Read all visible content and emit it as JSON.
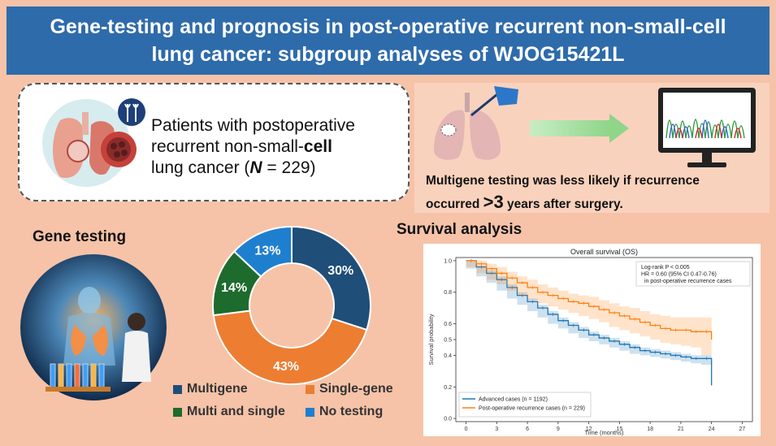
{
  "header": {
    "line1": "Gene-testing and prognosis in post-operative recurrent non-small-cell",
    "line2": "lung cancer: subgroup analyses of WJOG15421L"
  },
  "patients": {
    "line1": "Patients with postoperative",
    "line2_a": "recurrent non-small-",
    "line2_b": "cell",
    "line3_a": "lung cancer (",
    "line3_n": "N",
    "line3_b": " = 229)"
  },
  "finding": {
    "part1": "Multigene testing was less likely if recurrence",
    "part2": "occurred ",
    "big": ">3",
    "part3": " years after surgery."
  },
  "gene_testing": {
    "title": "Gene testing",
    "legend": [
      {
        "label": "Multigene",
        "color": "#1f4e79"
      },
      {
        "label": "Single-gene",
        "color": "#ed7d31"
      },
      {
        "label": "Multi and single",
        "color": "#1e6b2e"
      },
      {
        "label": "No testing",
        "color": "#1f7fcf"
      }
    ]
  },
  "survival": {
    "title": "Survival analysis"
  },
  "chart_data": [
    {
      "type": "pie",
      "variant": "donut",
      "categories": [
        "Multigene",
        "Single-gene",
        "Multi and single",
        "No testing"
      ],
      "values": [
        30,
        43,
        14,
        13
      ],
      "labels": [
        "30%",
        "43%",
        "14%",
        "13%"
      ],
      "colors": [
        "#1f4e79",
        "#ed7d31",
        "#1e6b2e",
        "#1f7fcf"
      ],
      "legend": "bottom"
    },
    {
      "type": "line",
      "title": "Overall survival (OS)",
      "xlabel": "Time (months)",
      "ylabel": "Survival probability",
      "xlim": [
        -1,
        28
      ],
      "ylim": [
        -0.02,
        1.02
      ],
      "xticks": [
        0,
        3,
        6,
        9,
        12,
        15,
        18,
        21,
        24,
        27
      ],
      "yticks": [
        0.0,
        0.2,
        0.4,
        0.5,
        0.6,
        0.8,
        1.0
      ],
      "ytick_labels": [
        "0.0",
        "0.2",
        "0.4",
        "0.5",
        "0.6",
        "0.8",
        "1.0"
      ],
      "annotation": [
        "Log-rank P < 0.005",
        "HR = 0.60 (95% CI 0.47-0.76)",
        "in post-operative recurrence cases"
      ],
      "legend_placement": "bottom-left",
      "series": [
        {
          "name": "Advanced cases (n = 1192)",
          "color": "#1f77b4",
          "x": [
            0,
            1,
            2,
            3,
            4,
            5,
            6,
            7,
            8,
            9,
            10,
            11,
            12,
            13,
            14,
            15,
            16,
            17,
            18,
            19,
            20,
            21,
            22,
            23,
            24
          ],
          "y": [
            1.0,
            0.96,
            0.92,
            0.88,
            0.83,
            0.78,
            0.74,
            0.7,
            0.66,
            0.62,
            0.59,
            0.56,
            0.53,
            0.51,
            0.49,
            0.47,
            0.45,
            0.43,
            0.42,
            0.41,
            0.4,
            0.39,
            0.38,
            0.38,
            0.38
          ],
          "ci_lower": [
            1.0,
            0.95,
            0.9,
            0.86,
            0.81,
            0.76,
            0.72,
            0.68,
            0.64,
            0.6,
            0.57,
            0.54,
            0.51,
            0.49,
            0.47,
            0.45,
            0.43,
            0.41,
            0.4,
            0.39,
            0.38,
            0.37,
            0.36,
            0.35,
            0.34
          ],
          "ci_upper": [
            1.0,
            0.97,
            0.94,
            0.9,
            0.85,
            0.8,
            0.76,
            0.72,
            0.68,
            0.64,
            0.61,
            0.58,
            0.55,
            0.53,
            0.51,
            0.49,
            0.47,
            0.45,
            0.44,
            0.43,
            0.42,
            0.41,
            0.4,
            0.4,
            0.41
          ],
          "tail_drop": 0.21
        },
        {
          "name": "Post-operative recurrence cases (n = 229)",
          "color": "#ff7f0e",
          "x": [
            0,
            1,
            2,
            3,
            4,
            5,
            6,
            7,
            8,
            9,
            10,
            11,
            12,
            13,
            14,
            15,
            16,
            17,
            18,
            19,
            20,
            21,
            22,
            23,
            24
          ],
          "y": [
            1.0,
            0.98,
            0.95,
            0.92,
            0.89,
            0.86,
            0.83,
            0.8,
            0.78,
            0.76,
            0.74,
            0.73,
            0.71,
            0.69,
            0.67,
            0.65,
            0.63,
            0.61,
            0.59,
            0.57,
            0.56,
            0.56,
            0.55,
            0.55,
            0.5
          ],
          "ci_lower": [
            1.0,
            0.96,
            0.92,
            0.88,
            0.85,
            0.81,
            0.78,
            0.75,
            0.73,
            0.71,
            0.69,
            0.67,
            0.65,
            0.63,
            0.61,
            0.58,
            0.56,
            0.54,
            0.52,
            0.5,
            0.48,
            0.47,
            0.46,
            0.45,
            0.4
          ],
          "ci_upper": [
            1.0,
            1.0,
            0.98,
            0.96,
            0.93,
            0.9,
            0.88,
            0.85,
            0.83,
            0.81,
            0.79,
            0.78,
            0.77,
            0.75,
            0.73,
            0.71,
            0.7,
            0.68,
            0.66,
            0.65,
            0.64,
            0.64,
            0.64,
            0.64,
            0.63
          ]
        }
      ]
    }
  ]
}
